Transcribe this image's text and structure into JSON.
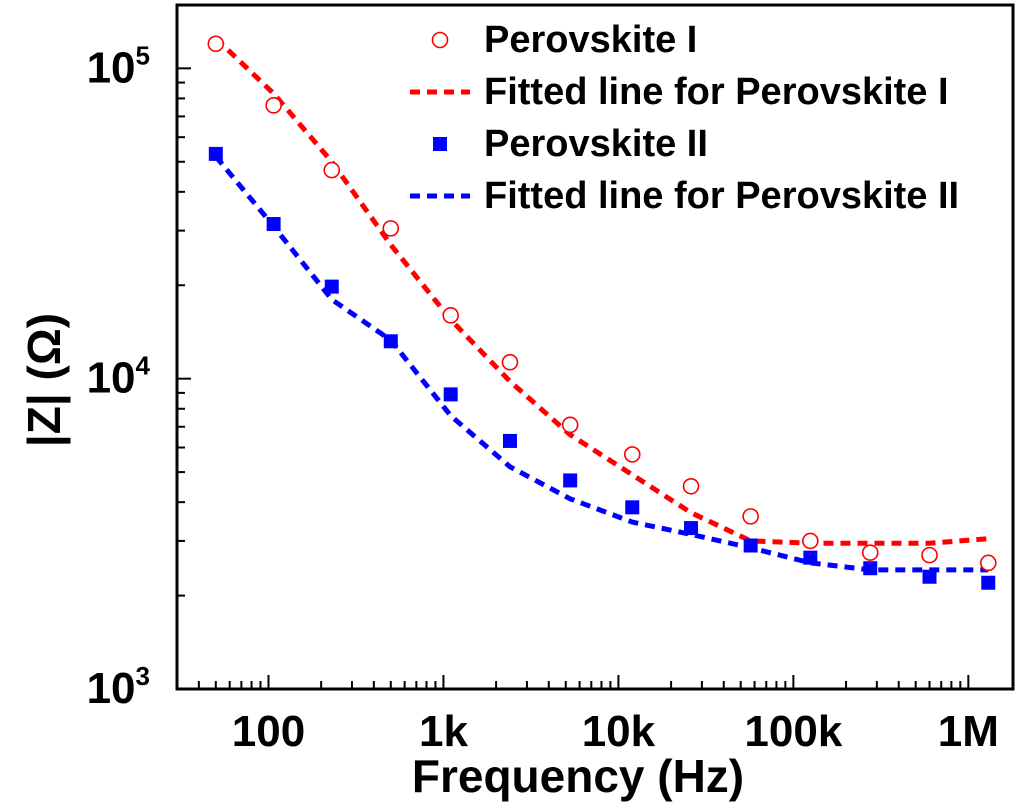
{
  "chart_data": {
    "type": "scatter",
    "xlabel": "Frequency (Hz)",
    "ylabel": "|Z| (Ω)",
    "xscale": "log",
    "yscale": "log",
    "xlim": [
      30,
      1800000
    ],
    "ylim": [
      1000,
      160000
    ],
    "x_ticks": [
      {
        "value": 100,
        "label": "100"
      },
      {
        "value": 1000,
        "label": "1k"
      },
      {
        "value": 10000,
        "label": "10k"
      },
      {
        "value": 100000,
        "label": "100k"
      },
      {
        "value": 1000000,
        "label": "1M"
      }
    ],
    "y_ticks": [
      {
        "value": 1000,
        "base": "10",
        "exp": "3"
      },
      {
        "value": 10000,
        "base": "10",
        "exp": "4"
      },
      {
        "value": 100000,
        "base": "10",
        "exp": "5"
      }
    ],
    "grid": false,
    "legend_position": "top-right",
    "series": [
      {
        "name": "Perovskite I",
        "kind": "scatter",
        "marker": "open-circle",
        "color": "#ff0000",
        "x": [
          50,
          107,
          230,
          500,
          1100,
          2400,
          5300,
          12000,
          26000,
          57000,
          125000,
          275000,
          600000,
          1300000
        ],
        "y": [
          120000,
          76000,
          47000,
          30500,
          16000,
          11300,
          7100,
          5700,
          4500,
          3600,
          3000,
          2750,
          2700,
          2550
        ]
      },
      {
        "name": "Fitted line for Perovskite I",
        "kind": "line",
        "style": "dashed",
        "color": "#ff0000",
        "x": [
          50,
          107,
          230,
          500,
          1100,
          2400,
          5300,
          12000,
          26000,
          57000,
          125000,
          275000,
          600000,
          1300000
        ],
        "y": [
          125000,
          83000,
          50000,
          27000,
          15500,
          9800,
          6600,
          4900,
          3700,
          3000,
          2950,
          2950,
          2950,
          3050
        ]
      },
      {
        "name": "Perovskite II",
        "kind": "scatter",
        "marker": "filled-square",
        "color": "#0000ff",
        "x": [
          50,
          107,
          230,
          500,
          1100,
          2400,
          5300,
          12000,
          26000,
          57000,
          125000,
          275000,
          600000,
          1300000
        ],
        "y": [
          53000,
          31500,
          19800,
          13200,
          8900,
          6300,
          4700,
          3850,
          3300,
          2900,
          2650,
          2450,
          2300,
          2200
        ]
      },
      {
        "name": "Fitted line for Perovskite II",
        "kind": "line",
        "style": "dashed",
        "color": "#0000ff",
        "x": [
          50,
          107,
          230,
          500,
          1100,
          2400,
          5300,
          12000,
          26000,
          57000,
          125000,
          275000,
          600000,
          1300000
        ],
        "y": [
          52000,
          31000,
          18000,
          13300,
          7600,
          5200,
          4100,
          3450,
          3150,
          2850,
          2550,
          2420,
          2420,
          2420
        ]
      }
    ]
  }
}
